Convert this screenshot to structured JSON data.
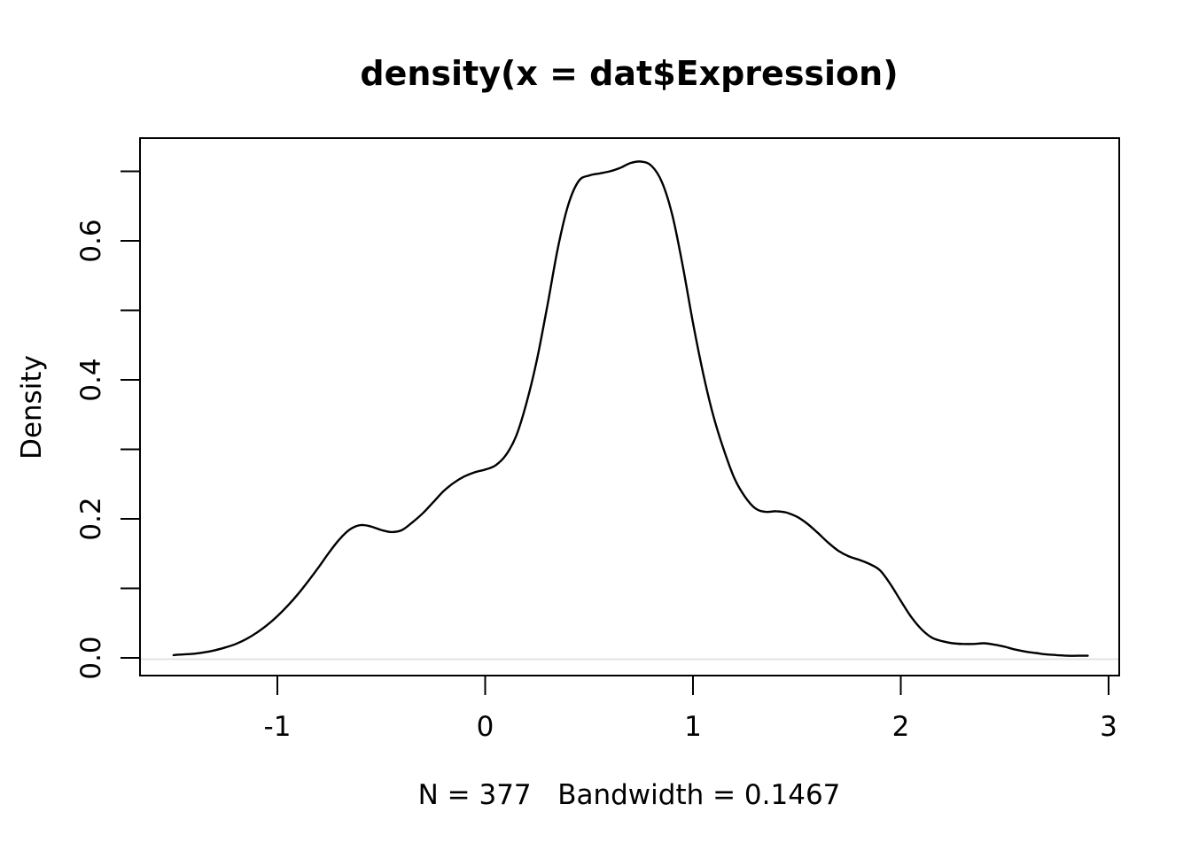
{
  "title": "density(x = dat$Expression)",
  "subtitle": "N = 377   Bandwidth = 0.1467",
  "y_axis_title": "Density",
  "colors": {
    "curve": "#000000",
    "axis": "#000000",
    "text": "#000000",
    "zero_line": "#e3e3e3",
    "background": "#ffffff"
  },
  "chart_data": {
    "type": "line",
    "title": "density(x = dat$Expression)",
    "xlabel": "N = 377   Bandwidth = 0.1467",
    "ylabel": "Density",
    "n": 377,
    "bandwidth": 0.1467,
    "grid": false,
    "legend": false,
    "xlim": [
      -1.66,
      3.05
    ],
    "ylim": [
      -0.027,
      0.748
    ],
    "x_ticks": {
      "values": [
        -1,
        0,
        1,
        2,
        3
      ],
      "labels": [
        "-1",
        "0",
        "1",
        "2",
        "3"
      ]
    },
    "y_ticks": {
      "values": [
        0.0,
        0.1,
        0.2,
        0.3,
        0.4,
        0.5,
        0.6,
        0.7
      ],
      "labels": [
        "0.0",
        "",
        "0.2",
        "",
        "0.4",
        "",
        "0.6",
        ""
      ]
    },
    "series": [
      {
        "name": "density of dat$Expression",
        "x": [
          -1.5,
          -1.45,
          -1.4,
          -1.35,
          -1.3,
          -1.25,
          -1.2,
          -1.15,
          -1.1,
          -1.05,
          -1.0,
          -0.95,
          -0.9,
          -0.85,
          -0.8,
          -0.75,
          -0.7,
          -0.65,
          -0.6,
          -0.55,
          -0.5,
          -0.45,
          -0.4,
          -0.35,
          -0.3,
          -0.25,
          -0.2,
          -0.15,
          -0.1,
          -0.05,
          0.0,
          0.05,
          0.1,
          0.15,
          0.2,
          0.25,
          0.3,
          0.35,
          0.4,
          0.45,
          0.5,
          0.55,
          0.6,
          0.65,
          0.7,
          0.75,
          0.8,
          0.85,
          0.9,
          0.95,
          1.0,
          1.05,
          1.1,
          1.15,
          1.2,
          1.25,
          1.3,
          1.35,
          1.4,
          1.45,
          1.5,
          1.55,
          1.6,
          1.65,
          1.7,
          1.75,
          1.8,
          1.85,
          1.9,
          1.95,
          2.0,
          2.05,
          2.1,
          2.15,
          2.2,
          2.25,
          2.3,
          2.35,
          2.4,
          2.45,
          2.5,
          2.55,
          2.6,
          2.65,
          2.7,
          2.75,
          2.8,
          2.85,
          2.9
        ],
        "y": [
          0.004,
          0.005,
          0.006,
          0.008,
          0.011,
          0.015,
          0.02,
          0.027,
          0.036,
          0.047,
          0.06,
          0.075,
          0.092,
          0.111,
          0.131,
          0.152,
          0.171,
          0.185,
          0.191,
          0.189,
          0.184,
          0.181,
          0.184,
          0.195,
          0.208,
          0.224,
          0.24,
          0.252,
          0.261,
          0.267,
          0.271,
          0.277,
          0.292,
          0.32,
          0.368,
          0.43,
          0.508,
          0.59,
          0.652,
          0.686,
          0.694,
          0.697,
          0.7,
          0.705,
          0.712,
          0.714,
          0.708,
          0.685,
          0.638,
          0.565,
          0.482,
          0.408,
          0.346,
          0.298,
          0.258,
          0.232,
          0.215,
          0.21,
          0.211,
          0.209,
          0.203,
          0.193,
          0.18,
          0.166,
          0.154,
          0.146,
          0.141,
          0.135,
          0.126,
          0.106,
          0.082,
          0.059,
          0.041,
          0.029,
          0.024,
          0.021,
          0.02,
          0.02,
          0.021,
          0.019,
          0.016,
          0.012,
          0.009,
          0.007,
          0.005,
          0.004,
          0.003,
          0.003,
          0.003
        ]
      }
    ]
  }
}
